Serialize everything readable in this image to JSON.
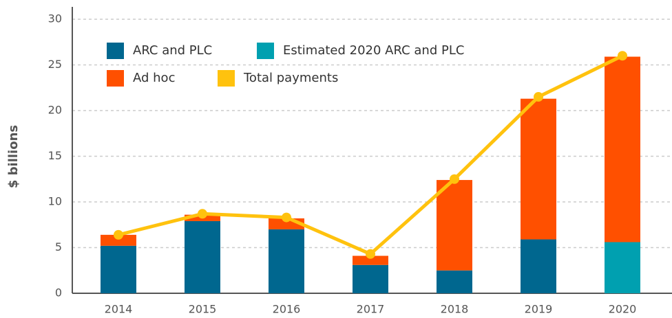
{
  "chart_data": {
    "type": "bar",
    "stacked": true,
    "y_label": "$ billions",
    "categories": [
      "2014",
      "2015",
      "2016",
      "2017",
      "2018",
      "2019",
      "2020"
    ],
    "series": [
      {
        "name": "ARC and PLC",
        "color": "#00678f",
        "values": [
          5.2,
          7.9,
          7.0,
          3.1,
          2.5,
          5.9,
          null
        ]
      },
      {
        "name": "Estimated 2020 ARC and PLC",
        "color": "#00a0b0",
        "values": [
          null,
          null,
          null,
          null,
          null,
          null,
          5.6
        ]
      },
      {
        "name": "Ad hoc",
        "color": "#ff5000",
        "values": [
          1.2,
          0.7,
          1.2,
          1.0,
          9.9,
          15.4,
          20.3
        ]
      },
      {
        "name": "Total payments",
        "color": "#ffc20e",
        "type": "line",
        "values": [
          6.4,
          8.7,
          8.3,
          4.3,
          12.5,
          21.5,
          26.0
        ]
      }
    ],
    "ylim": [
      0,
      30
    ],
    "yticks": [
      0,
      5,
      10,
      15,
      20,
      25,
      30
    ],
    "grid": true
  }
}
